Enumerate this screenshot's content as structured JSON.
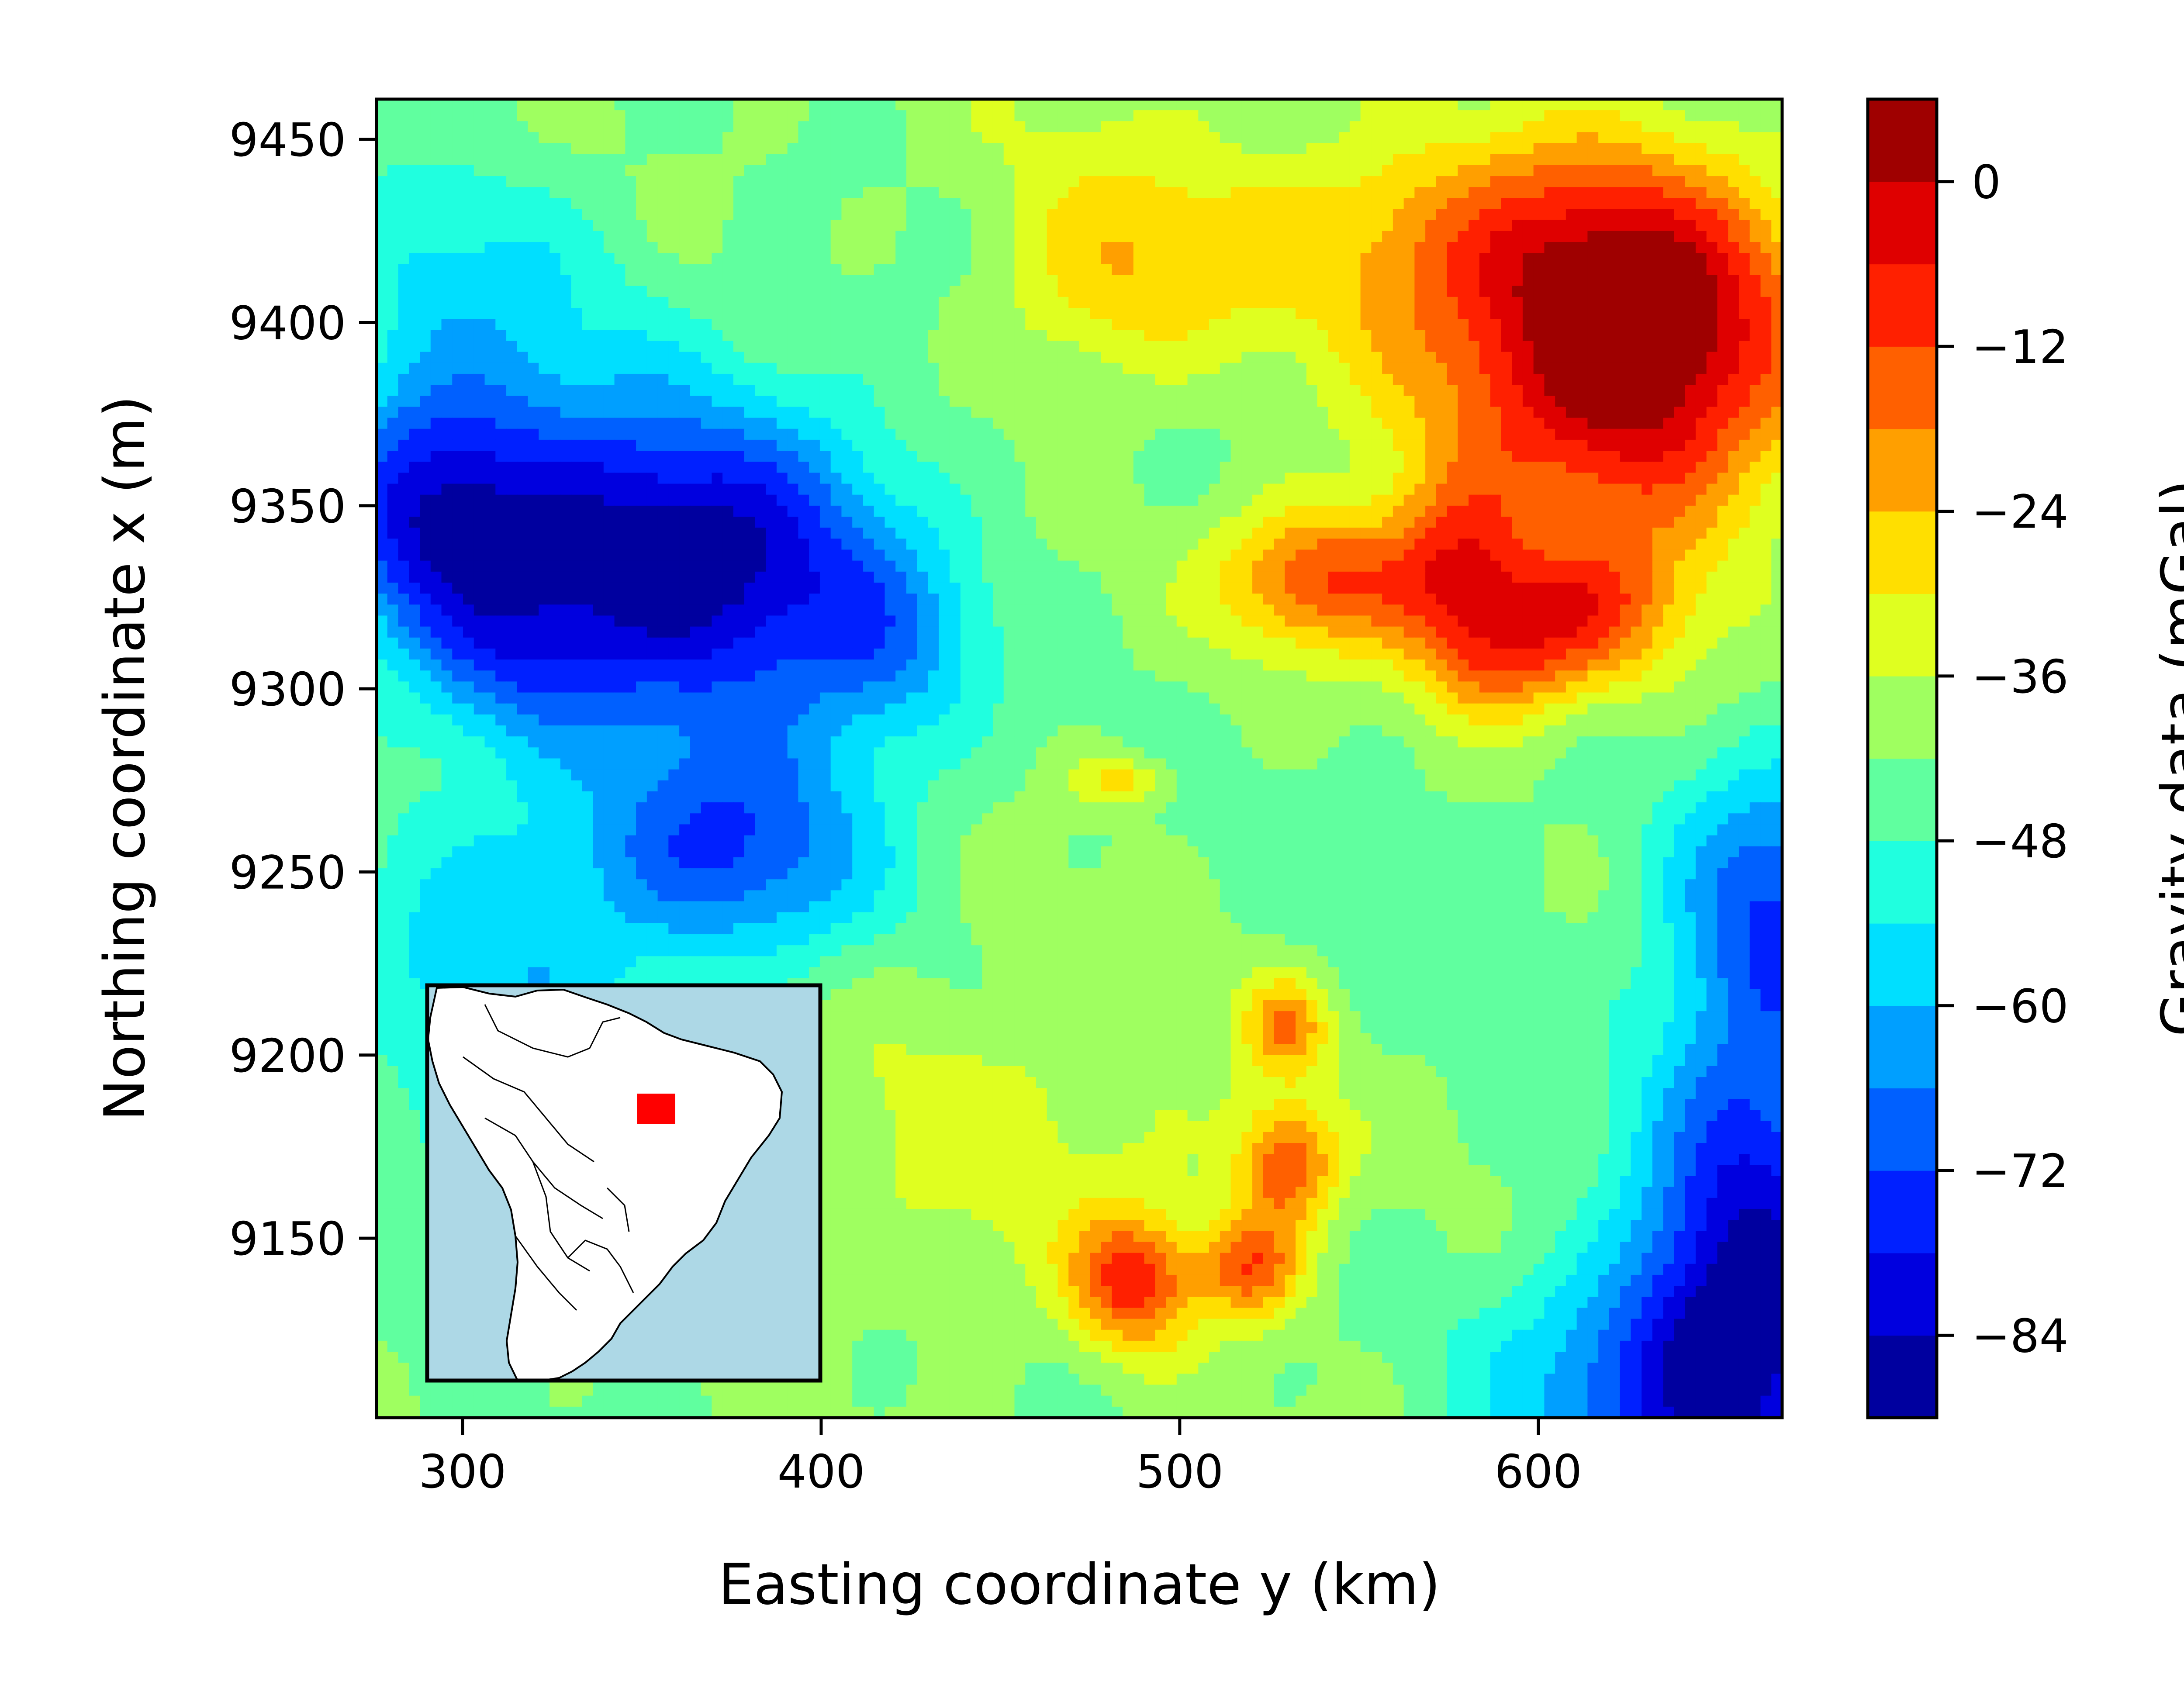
{
  "chart_data": {
    "type": "heatmap",
    "title": "",
    "xlabel": "Easting coordinate y (km)",
    "ylabel": "Northing coordinate x (m)",
    "xlim": [
      276,
      668
    ],
    "ylim": [
      9101,
      9461
    ],
    "x_ticks": [
      300,
      400,
      500,
      600
    ],
    "y_ticks": [
      9150,
      9200,
      9250,
      9300,
      9350,
      9400,
      9450
    ],
    "grid": false,
    "colormap": "jet",
    "colorbar": {
      "label": "Gravity data (mGal)",
      "range": [
        -90,
        6
      ],
      "level_step": 6,
      "ticks": [
        0,
        -12,
        -24,
        -36,
        -48,
        -60,
        -72,
        -84
      ],
      "tick_labels": [
        "0",
        "−12",
        "−24",
        "−36",
        "−48",
        "−60",
        "−72",
        "−84"
      ]
    },
    "background_value": -42,
    "anomalies": [
      {
        "x": 620,
        "y": 9395,
        "sx": 40,
        "sy": 30,
        "amp": 40
      },
      {
        "x": 575,
        "y": 9425,
        "sx": 55,
        "sy": 20,
        "amp": 15
      },
      {
        "x": 630,
        "y": 9375,
        "sx": 25,
        "sy": 45,
        "amp": 15
      },
      {
        "x": 540,
        "y": 9330,
        "sx": 20,
        "sy": 14,
        "amp": 30
      },
      {
        "x": 578,
        "y": 9330,
        "sx": 14,
        "sy": 20,
        "amp": 28
      },
      {
        "x": 610,
        "y": 9320,
        "sx": 18,
        "sy": 14,
        "amp": 25
      },
      {
        "x": 590,
        "y": 9305,
        "sx": 14,
        "sy": 12,
        "amp": 15
      },
      {
        "x": 460,
        "y": 9450,
        "sx": 40,
        "sy": 20,
        "amp": 5
      },
      {
        "x": 480,
        "y": 9410,
        "sx": 25,
        "sy": 20,
        "amp": 15
      },
      {
        "x": 530,
        "y": 9208,
        "sx": 8,
        "sy": 9,
        "amp": 22
      },
      {
        "x": 530,
        "y": 9170,
        "sx": 10,
        "sy": 12,
        "amp": 28
      },
      {
        "x": 487,
        "y": 9138,
        "sx": 12,
        "sy": 13,
        "amp": 30
      },
      {
        "x": 520,
        "y": 9142,
        "sx": 10,
        "sy": 10,
        "amp": 26
      },
      {
        "x": 483,
        "y": 9275,
        "sx": 9,
        "sy": 5,
        "amp": 15
      },
      {
        "x": 455,
        "y": 9180,
        "sx": 50,
        "sy": 35,
        "amp": 8
      },
      {
        "x": 330,
        "y": 9340,
        "sx": 35,
        "sy": 30,
        "amp": -35
      },
      {
        "x": 380,
        "y": 9330,
        "sx": 30,
        "sy": 30,
        "amp": -32
      },
      {
        "x": 290,
        "y": 9350,
        "sx": 20,
        "sy": 25,
        "amp": -25
      },
      {
        "x": 315,
        "y": 9305,
        "sx": 18,
        "sy": 15,
        "amp": -10
      },
      {
        "x": 375,
        "y": 9255,
        "sx": 30,
        "sy": 22,
        "amp": -28
      },
      {
        "x": 310,
        "y": 9220,
        "sx": 30,
        "sy": 40,
        "amp": -15
      },
      {
        "x": 420,
        "y": 9310,
        "sx": 18,
        "sy": 20,
        "amp": -15
      },
      {
        "x": 300,
        "y": 9410,
        "sx": 30,
        "sy": 25,
        "amp": -12
      },
      {
        "x": 660,
        "y": 9140,
        "sx": 22,
        "sy": 50,
        "amp": -40
      },
      {
        "x": 630,
        "y": 9110,
        "sx": 30,
        "sy": 25,
        "amp": -25
      },
      {
        "x": 665,
        "y": 9240,
        "sx": 20,
        "sy": 30,
        "amp": -25
      },
      {
        "x": 440,
        "y": 9420,
        "sx": 30,
        "sy": 40,
        "amp": -3
      },
      {
        "x": 560,
        "y": 9250,
        "sx": 40,
        "sy": 30,
        "amp": -3
      }
    ],
    "inset_map": {
      "region": "South America",
      "highlight_color": "#ff0000",
      "ocean_color": "#add8e6"
    }
  }
}
